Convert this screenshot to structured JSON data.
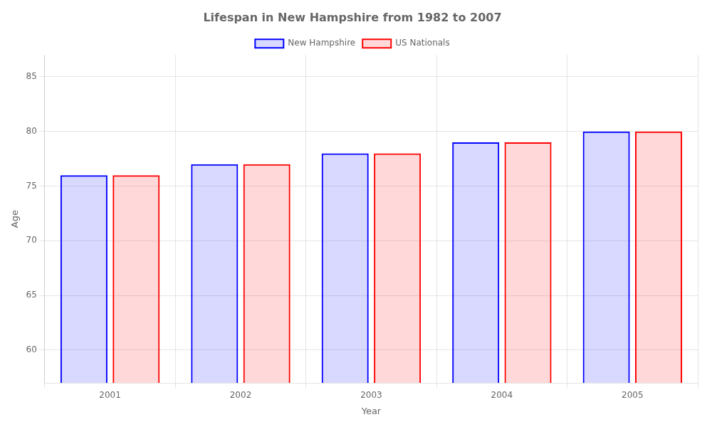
{
  "chart_data": {
    "type": "bar",
    "title": "Lifespan in New Hampshire from 1982 to 2007",
    "xlabel": "Year",
    "ylabel": "Age",
    "categories": [
      "2001",
      "2002",
      "2003",
      "2004",
      "2005"
    ],
    "series": [
      {
        "name": "New Hampshire",
        "color": "#0000ff",
        "values": [
          76,
          77,
          78,
          79,
          80
        ]
      },
      {
        "name": "US Nationals",
        "color": "#ff0000",
        "values": [
          76,
          77,
          78,
          79,
          80
        ]
      }
    ],
    "ylim": [
      57,
      87
    ],
    "yticks": [
      60,
      65,
      70,
      75,
      80,
      85
    ],
    "grid": true,
    "legend": "top"
  }
}
